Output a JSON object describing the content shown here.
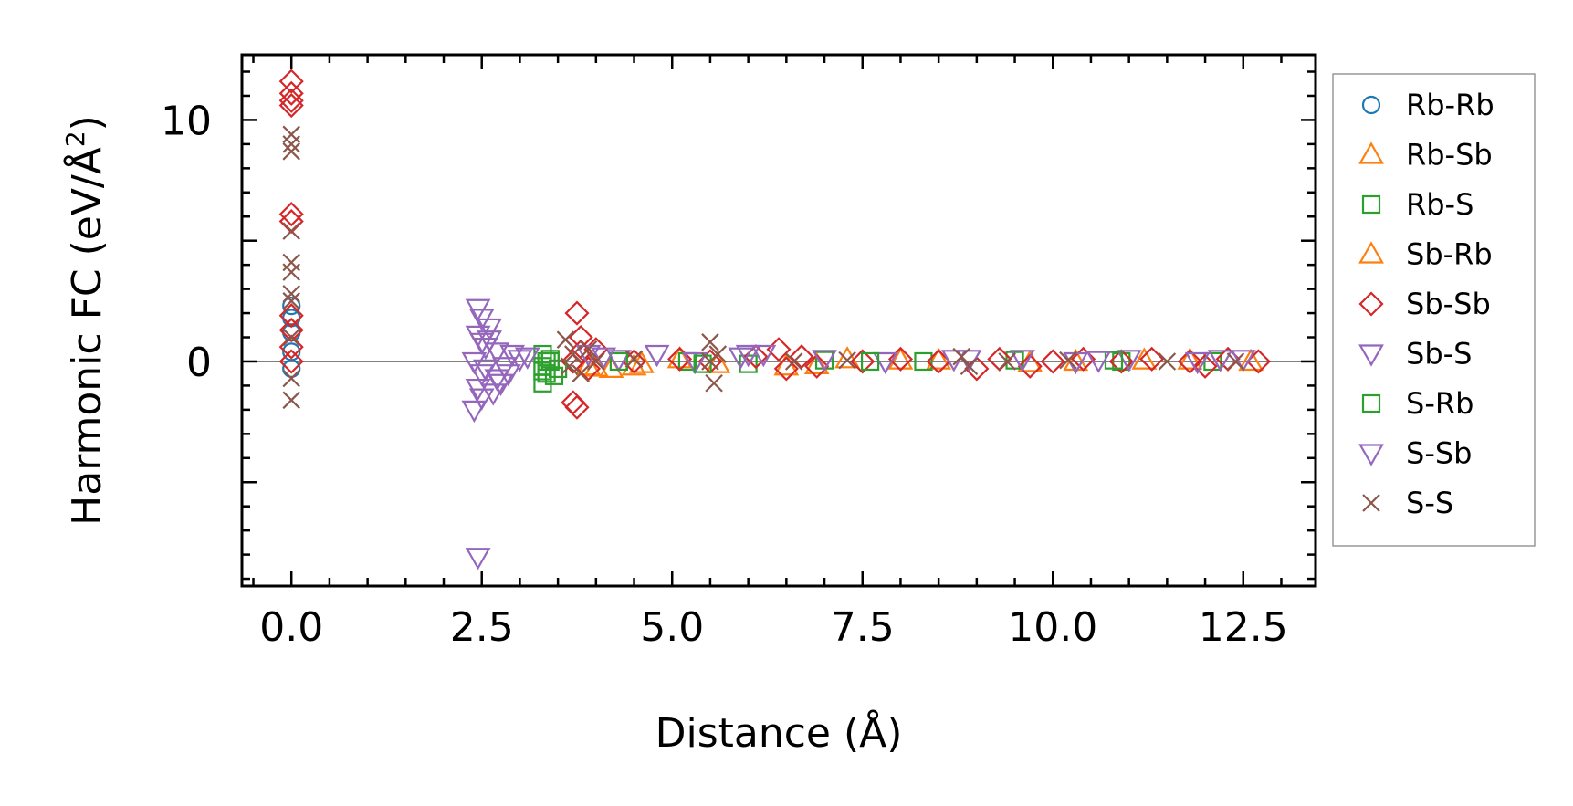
{
  "chart_data": {
    "type": "scatter",
    "title": "",
    "xlabel": "Distance (Å)",
    "ylabel_main": "Harmonic FC (eV/Å",
    "ylabel_sup": "2",
    "ylabel_close": ")",
    "xlim": [
      -0.65,
      13.45
    ],
    "ylim": [
      -9.3,
      12.7
    ],
    "xticks": [
      0.0,
      2.5,
      5.0,
      7.5,
      10.0,
      12.5
    ],
    "xtick_labels": [
      "0.0",
      "2.5",
      "5.0",
      "7.5",
      "10.0",
      "12.5"
    ],
    "yticks": [
      0,
      10
    ],
    "ytick_labels": [
      "0",
      "10"
    ],
    "legend_position": "outside-right",
    "zero_line": true,
    "series": [
      {
        "name": "Rb-Rb",
        "marker": "circle",
        "color": "#1f77b4",
        "points": [
          [
            0,
            2.3
          ],
          [
            0,
            1.8
          ],
          [
            0,
            -0.3
          ],
          [
            0,
            0.4
          ],
          [
            0,
            1.2
          ]
        ]
      },
      {
        "name": "Rb-Sb",
        "marker": "triangle-up",
        "color": "#ff7f0e",
        "points": [
          [
            3.9,
            -0.2
          ],
          [
            4.2,
            -0.3
          ],
          [
            4.6,
            -0.1
          ],
          [
            5.1,
            0.1
          ],
          [
            6.5,
            -0.2
          ],
          [
            7.3,
            0.1
          ],
          [
            8.5,
            0.05
          ],
          [
            9.7,
            -0.05
          ],
          [
            11.2,
            0.05
          ],
          [
            12.6,
            0.0
          ]
        ]
      },
      {
        "name": "Rb-S",
        "marker": "square",
        "color": "#2ca02c",
        "points": [
          [
            3.3,
            -0.9
          ],
          [
            3.3,
            0.3
          ],
          [
            3.3,
            -0.2
          ],
          [
            3.35,
            -0.5
          ],
          [
            3.4,
            0.1
          ],
          [
            3.45,
            -0.6
          ],
          [
            3.35,
            0.0
          ],
          [
            3.3,
            -0.4
          ],
          [
            5.2,
            0.0
          ],
          [
            6.0,
            -0.1
          ],
          [
            7.0,
            0.05
          ],
          [
            8.3,
            0.0
          ],
          [
            9.5,
            0.05
          ],
          [
            10.9,
            0.0
          ],
          [
            12.1,
            0.0
          ]
        ]
      },
      {
        "name": "Sb-Rb",
        "marker": "triangle-up",
        "color": "#ff7f0e",
        "points": [
          [
            4.0,
            -0.25
          ],
          [
            4.5,
            -0.2
          ],
          [
            5.6,
            -0.1
          ],
          [
            6.9,
            -0.15
          ],
          [
            8.0,
            0.05
          ],
          [
            10.3,
            0.0
          ],
          [
            11.8,
            0.05
          ]
        ]
      },
      {
        "name": "Sb-Sb",
        "marker": "diamond",
        "color": "#d62728",
        "points": [
          [
            0,
            11.6
          ],
          [
            0,
            11.1
          ],
          [
            0,
            10.8
          ],
          [
            0,
            10.6
          ],
          [
            0,
            6.1
          ],
          [
            0,
            5.8
          ],
          [
            0,
            1.9
          ],
          [
            0,
            1.3
          ],
          [
            0,
            0.6
          ],
          [
            0,
            0.0
          ],
          [
            3.75,
            2.0
          ],
          [
            3.8,
            1.0
          ],
          [
            3.7,
            -1.7
          ],
          [
            3.75,
            -1.9
          ],
          [
            3.8,
            0.4
          ],
          [
            3.9,
            -0.3
          ],
          [
            3.7,
            0.0
          ],
          [
            4.0,
            0.5
          ],
          [
            4.5,
            0.0
          ],
          [
            5.1,
            0.1
          ],
          [
            5.5,
            0.0
          ],
          [
            6.1,
            0.2
          ],
          [
            6.4,
            0.5
          ],
          [
            6.5,
            -0.3
          ],
          [
            6.7,
            0.2
          ],
          [
            6.9,
            -0.2
          ],
          [
            7.5,
            0.0
          ],
          [
            8.0,
            0.1
          ],
          [
            8.5,
            0.0
          ],
          [
            9.0,
            -0.3
          ],
          [
            9.3,
            0.1
          ],
          [
            9.7,
            -0.2
          ],
          [
            10.0,
            0.0
          ],
          [
            10.4,
            0.1
          ],
          [
            10.9,
            0.0
          ],
          [
            11.3,
            0.1
          ],
          [
            11.8,
            0.0
          ],
          [
            12.0,
            -0.2
          ],
          [
            12.3,
            0.1
          ],
          [
            12.7,
            0.0
          ]
        ]
      },
      {
        "name": "Sb-S",
        "marker": "triangle-down",
        "color": "#9467bd",
        "points": [
          [
            2.45,
            -8.1
          ],
          [
            2.45,
            2.2
          ],
          [
            2.5,
            1.8
          ],
          [
            2.45,
            1.1
          ],
          [
            2.55,
            0.6
          ],
          [
            2.4,
            0.0
          ],
          [
            2.5,
            -0.5
          ],
          [
            2.45,
            -1.1
          ],
          [
            2.5,
            -1.5
          ],
          [
            2.4,
            -2.0
          ],
          [
            2.6,
            0.9
          ],
          [
            2.7,
            0.4
          ],
          [
            2.8,
            -0.2
          ],
          [
            2.75,
            -0.9
          ],
          [
            2.9,
            0.3
          ],
          [
            2.65,
            -1.3
          ],
          [
            2.85,
            -0.5
          ],
          [
            3.0,
            0.1
          ],
          [
            3.9,
            0.3
          ],
          [
            4.3,
            0.1
          ],
          [
            4.8,
            0.3
          ],
          [
            5.3,
            0.0
          ],
          [
            5.9,
            0.2
          ],
          [
            6.2,
            0.3
          ],
          [
            7.0,
            0.1
          ],
          [
            7.8,
            0.0
          ],
          [
            8.9,
            0.1
          ],
          [
            9.6,
            0.1
          ],
          [
            10.3,
            0.0
          ],
          [
            11.0,
            0.1
          ],
          [
            11.9,
            0.0
          ],
          [
            12.5,
            0.1
          ]
        ]
      },
      {
        "name": "S-Rb",
        "marker": "square",
        "color": "#2ca02c",
        "points": [
          [
            3.4,
            0.0
          ],
          [
            3.5,
            -0.3
          ],
          [
            4.3,
            0.0
          ],
          [
            5.4,
            -0.1
          ],
          [
            7.6,
            0.0
          ],
          [
            10.8,
            0.05
          ]
        ]
      },
      {
        "name": "S-Sb",
        "marker": "triangle-down",
        "color": "#9467bd",
        "points": [
          [
            2.5,
            0.8
          ],
          [
            2.55,
            -0.3
          ],
          [
            2.6,
            1.4
          ],
          [
            2.7,
            -0.7
          ],
          [
            3.1,
            0.2
          ],
          [
            4.1,
            0.2
          ],
          [
            6.0,
            0.3
          ],
          [
            8.7,
            0.1
          ],
          [
            10.6,
            0.05
          ],
          [
            12.2,
            0.1
          ]
        ]
      },
      {
        "name": "S-S",
        "marker": "x",
        "color": "#8c564b",
        "points": [
          [
            0,
            9.4
          ],
          [
            0,
            9.0
          ],
          [
            0,
            8.7
          ],
          [
            0,
            5.4
          ],
          [
            0,
            4.1
          ],
          [
            0,
            3.7
          ],
          [
            0,
            2.8
          ],
          [
            0,
            2.5
          ],
          [
            0,
            1.0
          ],
          [
            0,
            -0.7
          ],
          [
            0,
            -1.6
          ],
          [
            3.6,
            0.9
          ],
          [
            3.7,
            0.3
          ],
          [
            3.8,
            -0.5
          ],
          [
            3.65,
            -0.2
          ],
          [
            3.9,
            0.5
          ],
          [
            4.0,
            0.0
          ],
          [
            4.5,
            0.1
          ],
          [
            5.5,
            0.8
          ],
          [
            5.55,
            -0.9
          ],
          [
            5.6,
            0.3
          ],
          [
            5.5,
            0.0
          ],
          [
            6.6,
            0.0
          ],
          [
            7.3,
            0.05
          ],
          [
            8.8,
            0.2
          ],
          [
            8.9,
            -0.2
          ],
          [
            9.4,
            0.0
          ],
          [
            10.2,
            0.05
          ],
          [
            11.5,
            0.0
          ],
          [
            12.4,
            0.0
          ]
        ]
      }
    ]
  }
}
